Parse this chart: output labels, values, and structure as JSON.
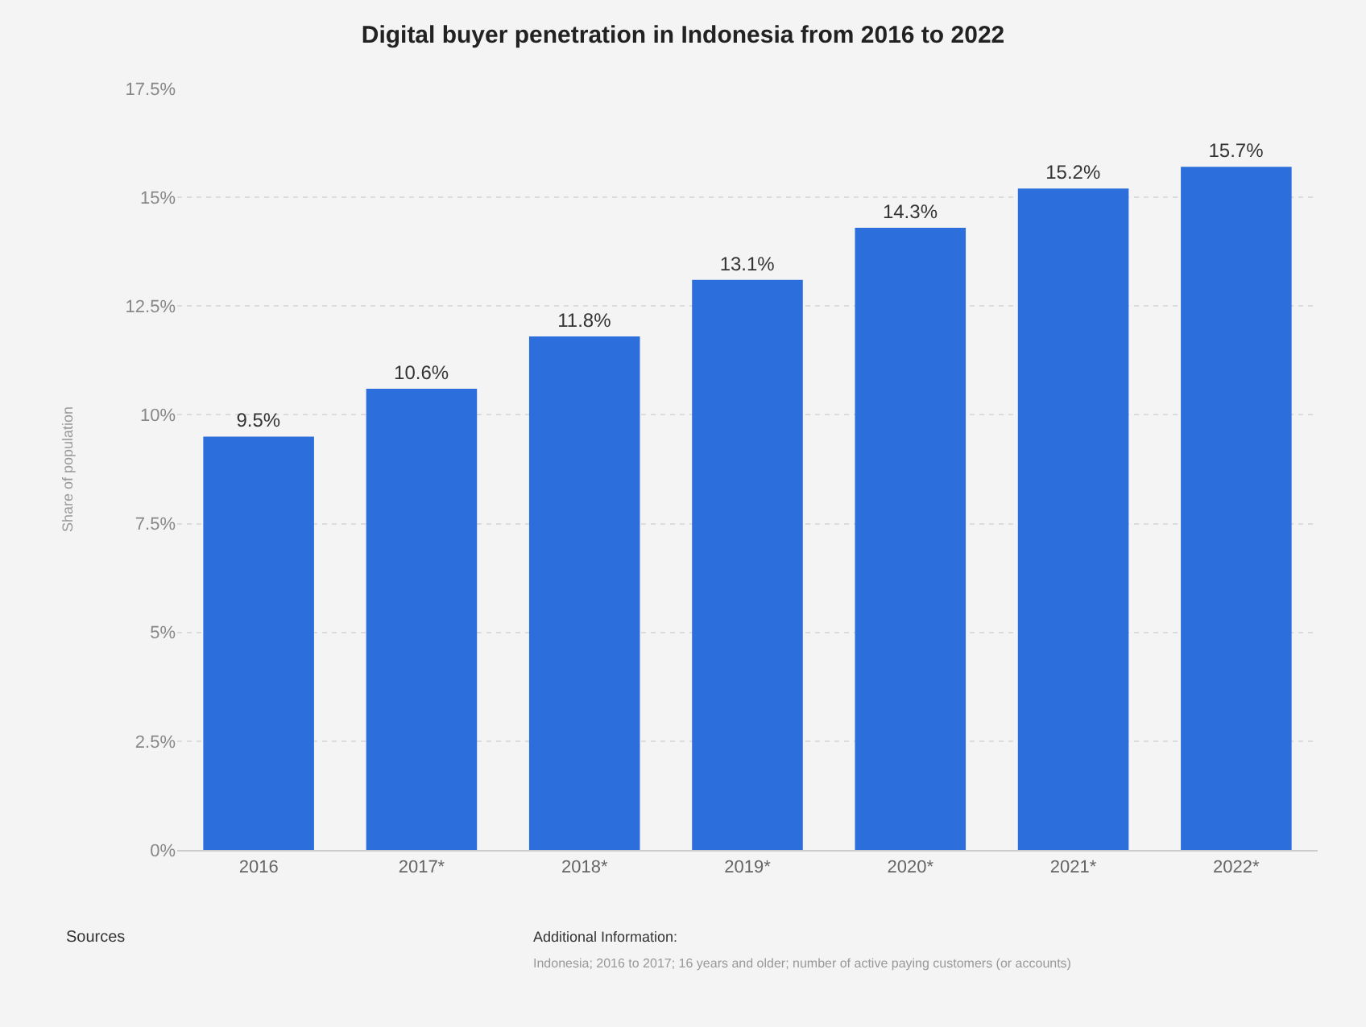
{
  "chart_data": {
    "type": "bar",
    "title": "Digital buyer penetration in Indonesia from 2016 to 2022",
    "ylabel": "Share of population",
    "categories": [
      "2016",
      "2017*",
      "2018*",
      "2019*",
      "2020*",
      "2021*",
      "2022*"
    ],
    "values": [
      9.5,
      10.6,
      11.8,
      13.1,
      14.3,
      15.2,
      15.7
    ],
    "value_labels": [
      "9.5%",
      "10.6%",
      "11.8%",
      "13.1%",
      "14.3%",
      "15.2%",
      "15.7%"
    ],
    "color": "#2c6fdc",
    "ylim": [
      0,
      17.5
    ],
    "yticks": [
      {
        "value": 0,
        "label": "0%"
      },
      {
        "value": 2.5,
        "label": "2.5%"
      },
      {
        "value": 5,
        "label": "5%"
      },
      {
        "value": 7.5,
        "label": "7.5%"
      },
      {
        "value": 10,
        "label": "10%"
      },
      {
        "value": 12.5,
        "label": "12.5%"
      },
      {
        "value": 15,
        "label": "15%"
      },
      {
        "value": 17.5,
        "label": "17.5%"
      }
    ],
    "grid": "y",
    "annotations": [
      "Sources",
      "Additional Information:",
      "Indonesia; 2016 to 2017; 16 years and older; number of active paying customers (or accounts)"
    ]
  }
}
